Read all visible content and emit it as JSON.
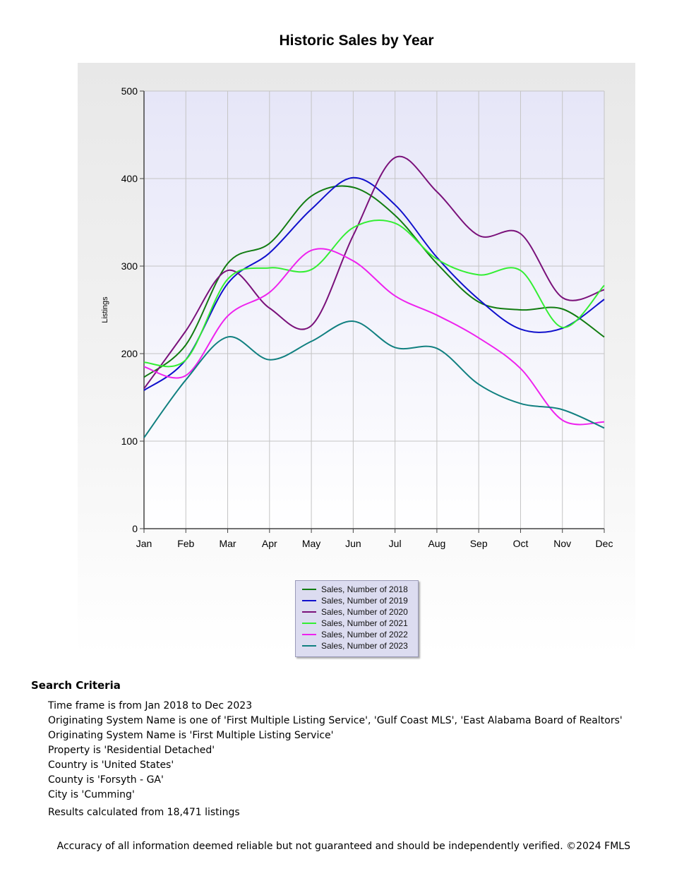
{
  "chart_data": {
    "type": "line",
    "title": "Historic Sales by Year",
    "xlabel": "",
    "ylabel": "Listings",
    "ylim": [
      0,
      500
    ],
    "yticks": [
      "0",
      "100",
      "200",
      "300",
      "400",
      "500"
    ],
    "categories": [
      "Jan",
      "Feb",
      "Mar",
      "Apr",
      "May",
      "Jun",
      "Jul",
      "Aug",
      "Sep",
      "Oct",
      "Nov",
      "Dec"
    ],
    "grid": true,
    "smooth": true,
    "legend_position": "bottom",
    "background_color": "#e6e6f8",
    "series": [
      {
        "name": "Sales, Number of 2018",
        "color": "#117c11",
        "values": [
          173,
          210,
          303,
          326,
          380,
          390,
          358,
          303,
          259,
          250,
          251,
          219
        ]
      },
      {
        "name": "Sales, Number of 2019",
        "color": "#1010cc",
        "values": [
          158,
          193,
          280,
          315,
          365,
          401,
          370,
          310,
          262,
          228,
          229,
          262
        ]
      },
      {
        "name": "Sales, Number of 2020",
        "color": "#7a117a",
        "values": [
          160,
          226,
          295,
          252,
          232,
          335,
          424,
          385,
          335,
          337,
          264,
          273
        ]
      },
      {
        "name": "Sales, Number of 2021",
        "color": "#33ee33",
        "values": [
          190,
          193,
          285,
          298,
          296,
          344,
          349,
          308,
          290,
          295,
          230,
          278
        ]
      },
      {
        "name": "Sales, Number of 2022",
        "color": "#ee22ee",
        "values": [
          185,
          175,
          243,
          270,
          318,
          306,
          266,
          244,
          218,
          183,
          124,
          122
        ]
      },
      {
        "name": "Sales, Number of 2023",
        "color": "#118080",
        "values": [
          104,
          170,
          219,
          193,
          214,
          237,
          207,
          206,
          165,
          143,
          136,
          115
        ]
      }
    ]
  },
  "criteria": {
    "heading": "Search Criteria",
    "lines": [
      "Time frame is from Jan 2018 to Dec 2023",
      "Originating System Name is one of 'First Multiple Listing Service', 'Gulf Coast MLS', 'East Alabama Board of Realtors'",
      "Originating System Name is 'First Multiple Listing Service'",
      "Property is 'Residential Detached'",
      "Country is 'United States'",
      "County is 'Forsyth - GA'",
      "City is 'Cumming'"
    ],
    "results": "Results calculated from 18,471 listings"
  },
  "footer": "Accuracy of all information deemed reliable but not guaranteed and should be independently verified. ©2024 FMLS"
}
